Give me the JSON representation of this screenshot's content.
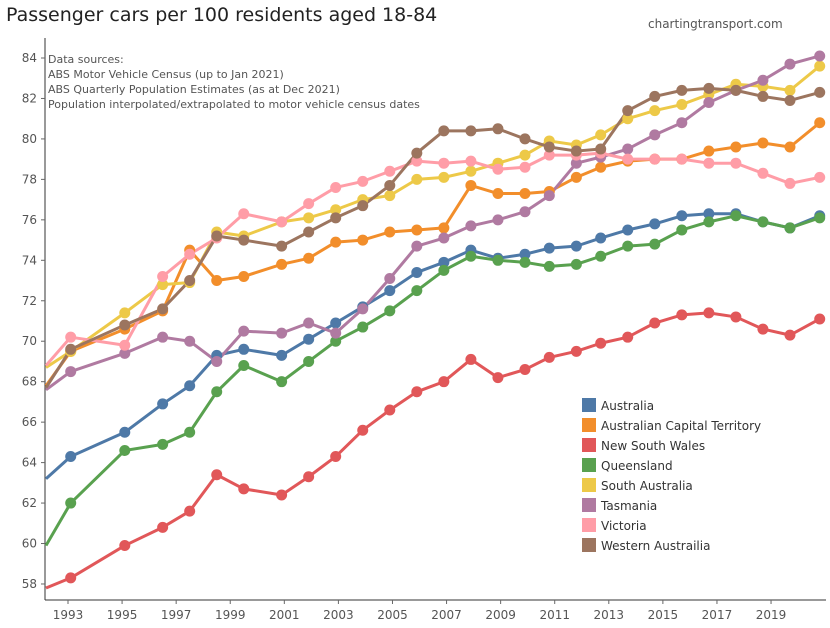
{
  "title": "Passenger cars per 100 residents aged 18-84",
  "credit": "chartingtransport.com",
  "sources": [
    "Data sources:",
    "ABS Motor Vehicle Census (up to Jan 2021)",
    "ABS Quarterly Population Estimates (as at Dec 2021)",
    "Population interpolated/extrapolated to motor vehicle census dates"
  ],
  "chart_data": {
    "type": "line",
    "title": "Passenger cars per 100 residents aged 18-84",
    "xlabel": "",
    "ylabel": "",
    "xlim": [
      1992.1,
      2020.9
    ],
    "ylim": [
      57.4,
      85
    ],
    "yticks": [
      58,
      60,
      62,
      64,
      66,
      68,
      70,
      72,
      74,
      76,
      78,
      80,
      82,
      84
    ],
    "xticks": [
      1993,
      1995,
      1997,
      1999,
      2001,
      2003,
      2005,
      2007,
      2009,
      2011,
      2013,
      2015,
      2017,
      2019
    ],
    "grid": false,
    "legend_position": "bottom-right",
    "x": [
      1992.1,
      1993.1,
      1995.1,
      1996.5,
      1997.5,
      1998.5,
      1999.5,
      2000.9,
      2001.9,
      2002.9,
      2003.9,
      2004.9,
      2005.9,
      2006.9,
      2007.9,
      2008.9,
      2009.9,
      2010.8,
      2011.8,
      2012.7,
      2013.7,
      2014.7,
      2015.7,
      2016.7,
      2017.7,
      2018.7,
      2019.7,
      2020.8
    ],
    "series": [
      {
        "name": "Australia",
        "color": "#4e79a7",
        "values": [
          63.2,
          64.3,
          65.5,
          66.9,
          67.8,
          69.3,
          69.6,
          69.3,
          70.1,
          70.9,
          71.7,
          72.5,
          73.4,
          73.9,
          74.5,
          74.1,
          74.3,
          74.6,
          74.7,
          75.1,
          75.5,
          75.8,
          76.2,
          76.3,
          76.3,
          75.9,
          75.6,
          76.2
        ]
      },
      {
        "name": "Australian Capital Territory",
        "color": "#f28e2b",
        "values": [
          67.8,
          69.5,
          70.6,
          71.5,
          74.5,
          73.0,
          73.2,
          73.8,
          74.1,
          74.9,
          75.0,
          75.4,
          75.5,
          75.6,
          77.7,
          77.3,
          77.3,
          77.4,
          78.1,
          78.6,
          78.9,
          79.0,
          79.0,
          79.4,
          79.6,
          79.8,
          79.6,
          80.8
        ]
      },
      {
        "name": "New South Wales",
        "color": "#e15759",
        "values": [
          57.8,
          58.3,
          59.9,
          60.8,
          61.6,
          63.4,
          62.7,
          62.4,
          63.3,
          64.3,
          65.6,
          66.6,
          67.5,
          68.0,
          69.1,
          68.2,
          68.6,
          69.2,
          69.5,
          69.9,
          70.2,
          70.9,
          71.3,
          71.4,
          71.2,
          70.6,
          70.3,
          71.1
        ]
      },
      {
        "name": "Queensland",
        "color": "#59a14f",
        "values": [
          59.9,
          62.0,
          64.6,
          64.9,
          65.5,
          67.5,
          68.8,
          68.0,
          69.0,
          70.0,
          70.7,
          71.5,
          72.5,
          73.5,
          74.2,
          74.0,
          73.9,
          73.7,
          73.8,
          74.2,
          74.7,
          74.8,
          75.5,
          75.9,
          76.2,
          75.9,
          75.6,
          76.1
        ]
      },
      {
        "name": "South Australia",
        "color": "#edc948",
        "values": [
          68.7,
          69.5,
          71.4,
          72.8,
          72.9,
          75.4,
          75.2,
          75.9,
          76.1,
          76.5,
          77.0,
          77.2,
          78.0,
          78.1,
          78.4,
          78.8,
          79.2,
          79.9,
          79.7,
          80.2,
          81.0,
          81.4,
          81.7,
          82.2,
          82.7,
          82.6,
          82.4,
          83.6
        ]
      },
      {
        "name": "Tasmania",
        "color": "#b07aa1",
        "values": [
          67.6,
          68.5,
          69.4,
          70.2,
          70.0,
          69.0,
          70.5,
          70.4,
          70.9,
          70.4,
          71.6,
          73.1,
          74.7,
          75.1,
          75.7,
          76.0,
          76.4,
          77.2,
          78.8,
          79.1,
          79.5,
          80.2,
          80.8,
          81.8,
          82.4,
          82.9,
          83.7,
          84.1
        ]
      },
      {
        "name": "Victoria",
        "color": "#ff9da7",
        "values": [
          68.8,
          70.2,
          69.8,
          73.2,
          74.3,
          75.1,
          76.3,
          75.9,
          76.8,
          77.6,
          77.9,
          78.4,
          78.9,
          78.8,
          78.9,
          78.5,
          78.6,
          79.2,
          79.2,
          79.3,
          79.0,
          79.0,
          79.0,
          78.8,
          78.8,
          78.3,
          77.8,
          78.1
        ]
      },
      {
        "name": "Western Austrailia",
        "color": "#9c755f",
        "values": [
          67.7,
          69.6,
          70.8,
          71.6,
          73.0,
          75.2,
          75.0,
          74.7,
          75.4,
          76.1,
          76.7,
          77.7,
          79.3,
          80.4,
          80.4,
          80.5,
          80.0,
          79.6,
          79.4,
          79.5,
          81.4,
          82.1,
          82.4,
          82.5,
          82.4,
          82.1,
          81.9,
          82.3
        ]
      }
    ]
  }
}
